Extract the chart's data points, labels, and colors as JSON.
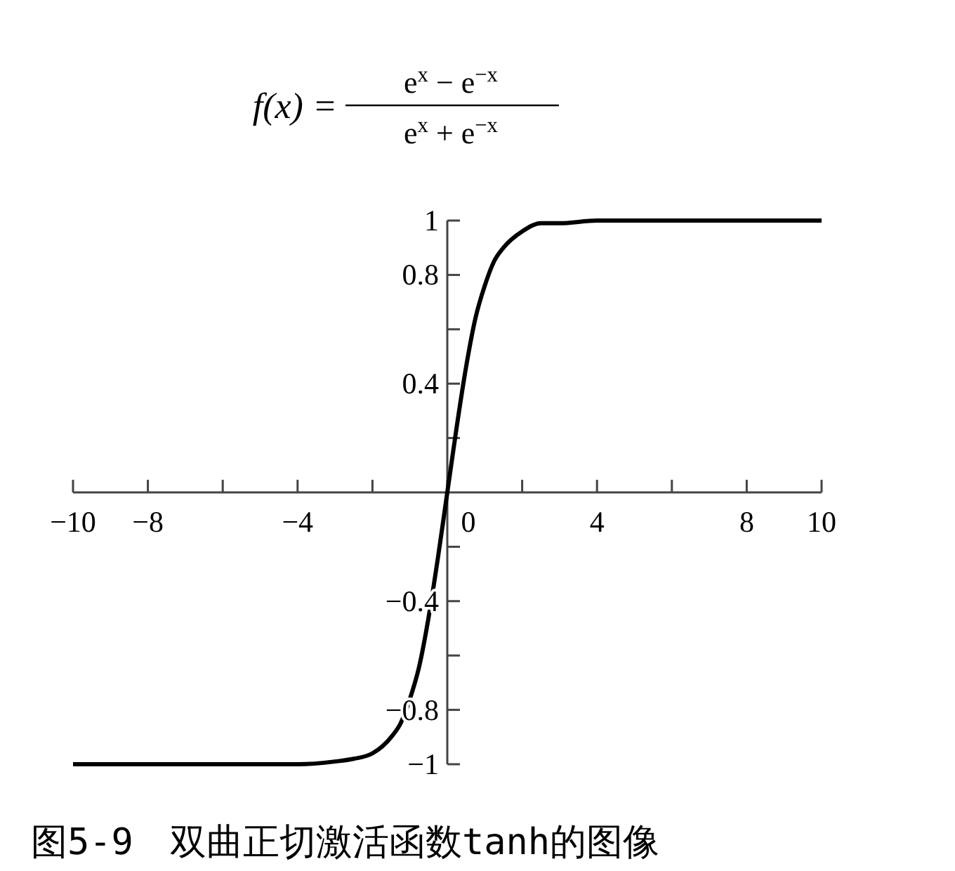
{
  "chart_data": {
    "type": "line",
    "annotations": [
      "f(x) =",
      "e$^{x}$ − e$^{−x}$",
      "e$^{x}$ + e$^{−x}$",
      "图5-9　双曲正切激活函数tanh的图像"
    ],
    "x": [
      -10,
      -4,
      -3,
      -2.5,
      -2,
      -1.5,
      -1.25,
      -1,
      -0.75,
      -0.5,
      -0.25,
      0,
      0.25,
      0.5,
      0.75,
      1,
      1.25,
      1.5,
      2,
      2.5,
      3,
      4,
      10
    ],
    "series": [
      {
        "color": "#000000",
        "values": [
          -1,
          -1,
          -0.99,
          -0.98,
          -0.96,
          -0.9,
          -0.85,
          -0.76,
          -0.64,
          -0.46,
          -0.24,
          0,
          0.24,
          0.46,
          0.64,
          0.76,
          0.85,
          0.9,
          0.96,
          0.99,
          0.99,
          1,
          1
        ]
      }
    ],
    "xlim": [
      -10,
      10
    ],
    "ylim": [
      -1,
      1
    ],
    "xticks": [
      -10,
      -8,
      {
        "value": -6,
        "label": null
      },
      -4,
      {
        "value": -2,
        "label": null
      },
      0,
      {
        "value": 2,
        "label": null
      },
      4,
      {
        "value": 6,
        "label": null
      },
      8,
      10
    ],
    "yticks": [
      -1,
      -0.8,
      {
        "value": -0.6,
        "label": null
      },
      -0.4,
      {
        "value": -0.2,
        "label": null
      },
      {
        "value": 0.2,
        "label": null
      },
      0.4,
      {
        "value": 0.6,
        "label": null
      },
      0.8,
      1
    ],
    "marker": "none",
    "line_style": "solid"
  }
}
